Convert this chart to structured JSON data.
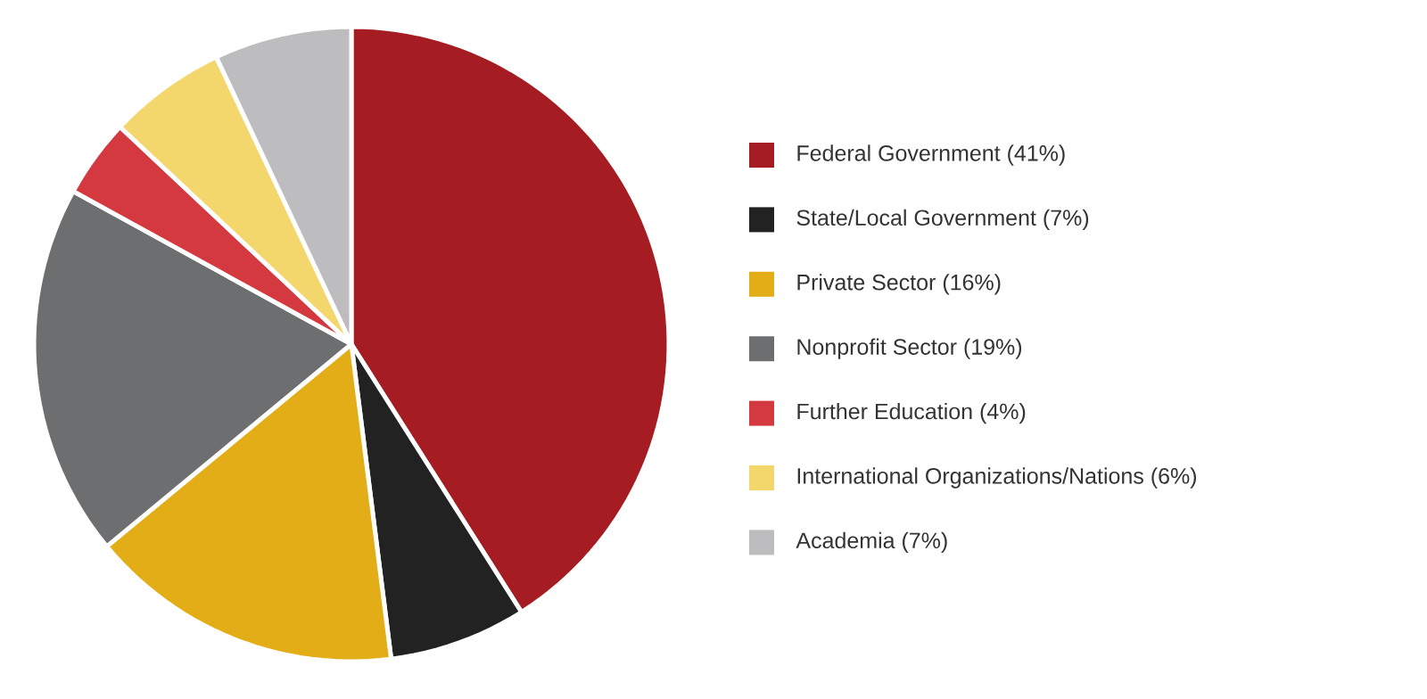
{
  "chart_data": {
    "type": "pie",
    "categories": [
      "Federal Government (41%)",
      "State/Local Government (7%)",
      "Private Sector (16%)",
      "Nonprofit Sector (19%)",
      "Further Education (4%)",
      "International Organizations/Nations (6%)",
      "Academia (7%)"
    ],
    "values": [
      41,
      7,
      16,
      19,
      4,
      6,
      7
    ],
    "colors": [
      "#a51c22",
      "#222222",
      "#e2ad17",
      "#6d6e70",
      "#d4393f",
      "#f4d76c",
      "#bdbdbf"
    ],
    "legend": "right"
  }
}
